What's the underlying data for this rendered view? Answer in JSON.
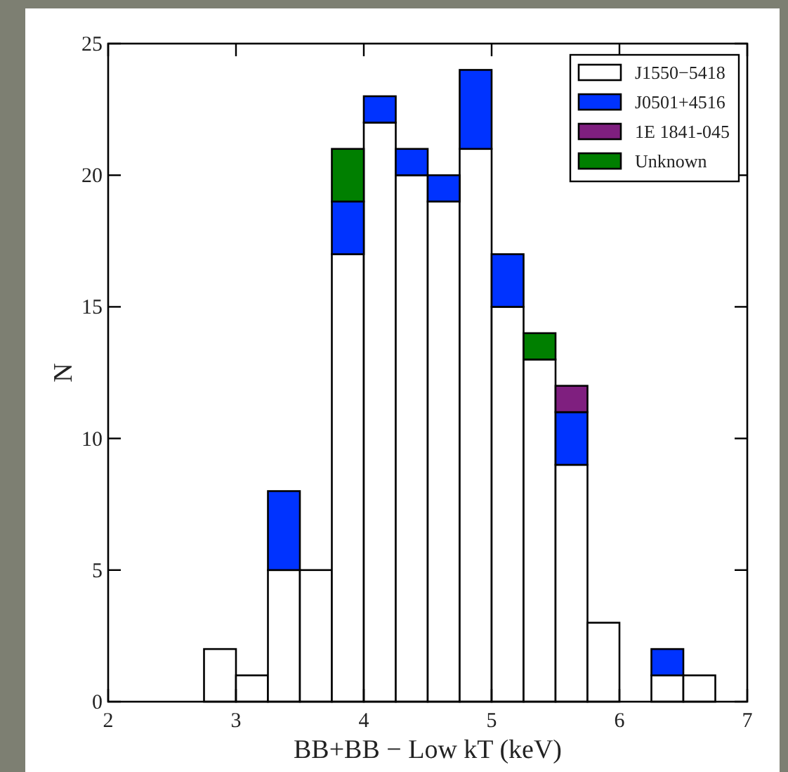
{
  "chart_data": {
    "type": "bar",
    "stacked": true,
    "xlabel": "BB+BB − Low kT (keV)",
    "ylabel": "N",
    "x": [
      2.875,
      3.125,
      3.375,
      3.625,
      3.875,
      4.125,
      4.375,
      4.625,
      4.875,
      5.125,
      5.375,
      5.625,
      5.875,
      6.125,
      6.375,
      6.625
    ],
    "series": [
      {
        "name": "J1550−5418",
        "color": "#ffffff",
        "values": [
          2,
          1,
          5,
          5,
          17,
          22,
          20,
          19,
          21,
          15,
          13,
          9,
          3,
          0,
          1,
          1
        ]
      },
      {
        "name": "J0501+4516",
        "color": "#0033ff",
        "values": [
          0,
          0,
          3,
          0,
          2,
          1,
          1,
          1,
          3,
          2,
          0,
          2,
          0,
          0,
          1,
          0
        ]
      },
      {
        "name": "1E 1841-045",
        "color": "#7f1f7f",
        "values": [
          0,
          0,
          0,
          0,
          0,
          0,
          0,
          0,
          0,
          0,
          0,
          1,
          0,
          0,
          0,
          0
        ]
      },
      {
        "name": "Unknown",
        "color": "#007f00",
        "values": [
          0,
          0,
          0,
          0,
          2,
          0,
          0,
          0,
          0,
          0,
          1,
          0,
          0,
          0,
          0,
          0
        ]
      }
    ],
    "xlim": [
      2,
      7
    ],
    "xticks": [
      2,
      3,
      4,
      5,
      6,
      7
    ],
    "ylim": [
      0,
      25
    ],
    "yticks": [
      0,
      5,
      10,
      15,
      20,
      25
    ],
    "legend": "top right"
  }
}
